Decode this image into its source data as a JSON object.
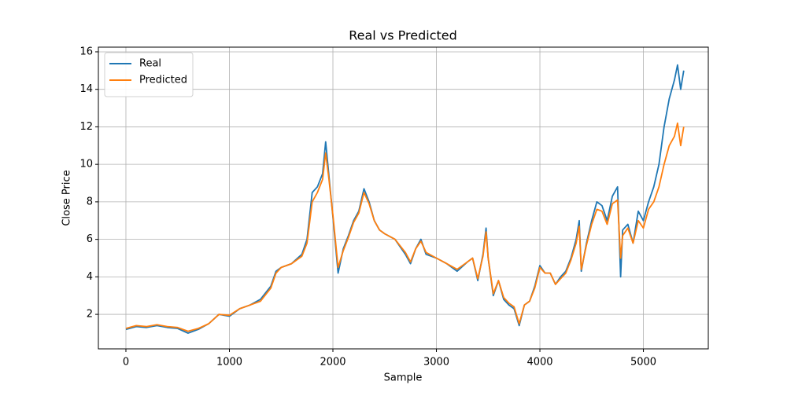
{
  "chart_data": {
    "type": "line",
    "title": "Real vs Predicted",
    "x_label": "Sample",
    "y_label": "Close Price",
    "x": [
      0,
      100,
      200,
      300,
      400,
      500,
      600,
      700,
      800,
      900,
      1000,
      1100,
      1200,
      1300,
      1400,
      1450,
      1500,
      1600,
      1700,
      1750,
      1800,
      1850,
      1900,
      1930,
      1960,
      2000,
      2050,
      2100,
      2150,
      2200,
      2250,
      2300,
      2350,
      2400,
      2450,
      2500,
      2600,
      2700,
      2750,
      2800,
      2850,
      2900,
      3000,
      3100,
      3200,
      3300,
      3350,
      3400,
      3450,
      3480,
      3500,
      3550,
      3600,
      3650,
      3700,
      3750,
      3800,
      3850,
      3900,
      3950,
      4000,
      4050,
      4100,
      4150,
      4200,
      4250,
      4300,
      4350,
      4380,
      4400,
      4450,
      4500,
      4550,
      4600,
      4650,
      4700,
      4750,
      4780,
      4800,
      4850,
      4900,
      4950,
      5000,
      5050,
      5100,
      5150,
      5200,
      5250,
      5300,
      5330,
      5360,
      5390
    ],
    "series": [
      {
        "name": "Real",
        "color": "#1f77b4",
        "values": [
          1.2,
          1.35,
          1.3,
          1.4,
          1.3,
          1.25,
          1.0,
          1.2,
          1.5,
          2.0,
          1.9,
          2.3,
          2.5,
          2.8,
          3.5,
          4.3,
          4.5,
          4.7,
          5.2,
          6.0,
          8.5,
          8.8,
          9.5,
          11.2,
          9.5,
          7.2,
          4.2,
          5.5,
          6.2,
          7.0,
          7.5,
          8.7,
          8.0,
          7.0,
          6.5,
          6.3,
          6.0,
          5.2,
          4.7,
          5.5,
          6.0,
          5.2,
          5.0,
          4.7,
          4.3,
          4.8,
          5.0,
          3.8,
          5.2,
          6.6,
          5.0,
          3.0,
          3.8,
          2.8,
          2.5,
          2.3,
          1.4,
          2.5,
          2.7,
          3.5,
          4.6,
          4.2,
          4.2,
          3.6,
          4.0,
          4.3,
          5.0,
          6.0,
          7.0,
          4.3,
          5.8,
          7.0,
          8.0,
          7.8,
          7.0,
          8.3,
          8.8,
          4.0,
          6.5,
          6.8,
          5.8,
          7.5,
          7.0,
          8.0,
          8.8,
          10.0,
          12.0,
          13.5,
          14.5,
          15.3,
          14.0,
          15.0
        ]
      },
      {
        "name": "Predicted",
        "color": "#ff7f0e",
        "values": [
          1.25,
          1.4,
          1.35,
          1.45,
          1.35,
          1.3,
          1.1,
          1.25,
          1.5,
          2.0,
          1.95,
          2.3,
          2.5,
          2.7,
          3.4,
          4.2,
          4.5,
          4.7,
          5.1,
          5.8,
          8.0,
          8.5,
          9.2,
          10.6,
          9.3,
          7.3,
          4.5,
          5.4,
          6.1,
          6.9,
          7.4,
          8.5,
          7.9,
          7.0,
          6.5,
          6.3,
          6.0,
          5.3,
          4.8,
          5.5,
          5.9,
          5.3,
          5.0,
          4.7,
          4.4,
          4.8,
          5.0,
          3.9,
          5.1,
          6.4,
          5.0,
          3.1,
          3.8,
          2.9,
          2.6,
          2.4,
          1.5,
          2.5,
          2.7,
          3.4,
          4.5,
          4.2,
          4.2,
          3.6,
          3.9,
          4.2,
          4.9,
          5.8,
          6.7,
          4.4,
          5.7,
          6.8,
          7.6,
          7.5,
          6.8,
          7.9,
          8.1,
          5.0,
          6.2,
          6.6,
          5.8,
          7.0,
          6.6,
          7.6,
          8.0,
          8.8,
          10.0,
          11.0,
          11.5,
          12.2,
          11.0,
          12.0
        ]
      }
    ],
    "xlim": [
      -266,
      5627
    ],
    "ylim": [
      0.16,
      16.25
    ],
    "xticks": [
      0,
      1000,
      2000,
      3000,
      4000,
      5000
    ],
    "yticks": [
      2,
      4,
      6,
      8,
      10,
      12,
      14,
      16
    ],
    "grid": true,
    "legend": "upper left"
  }
}
